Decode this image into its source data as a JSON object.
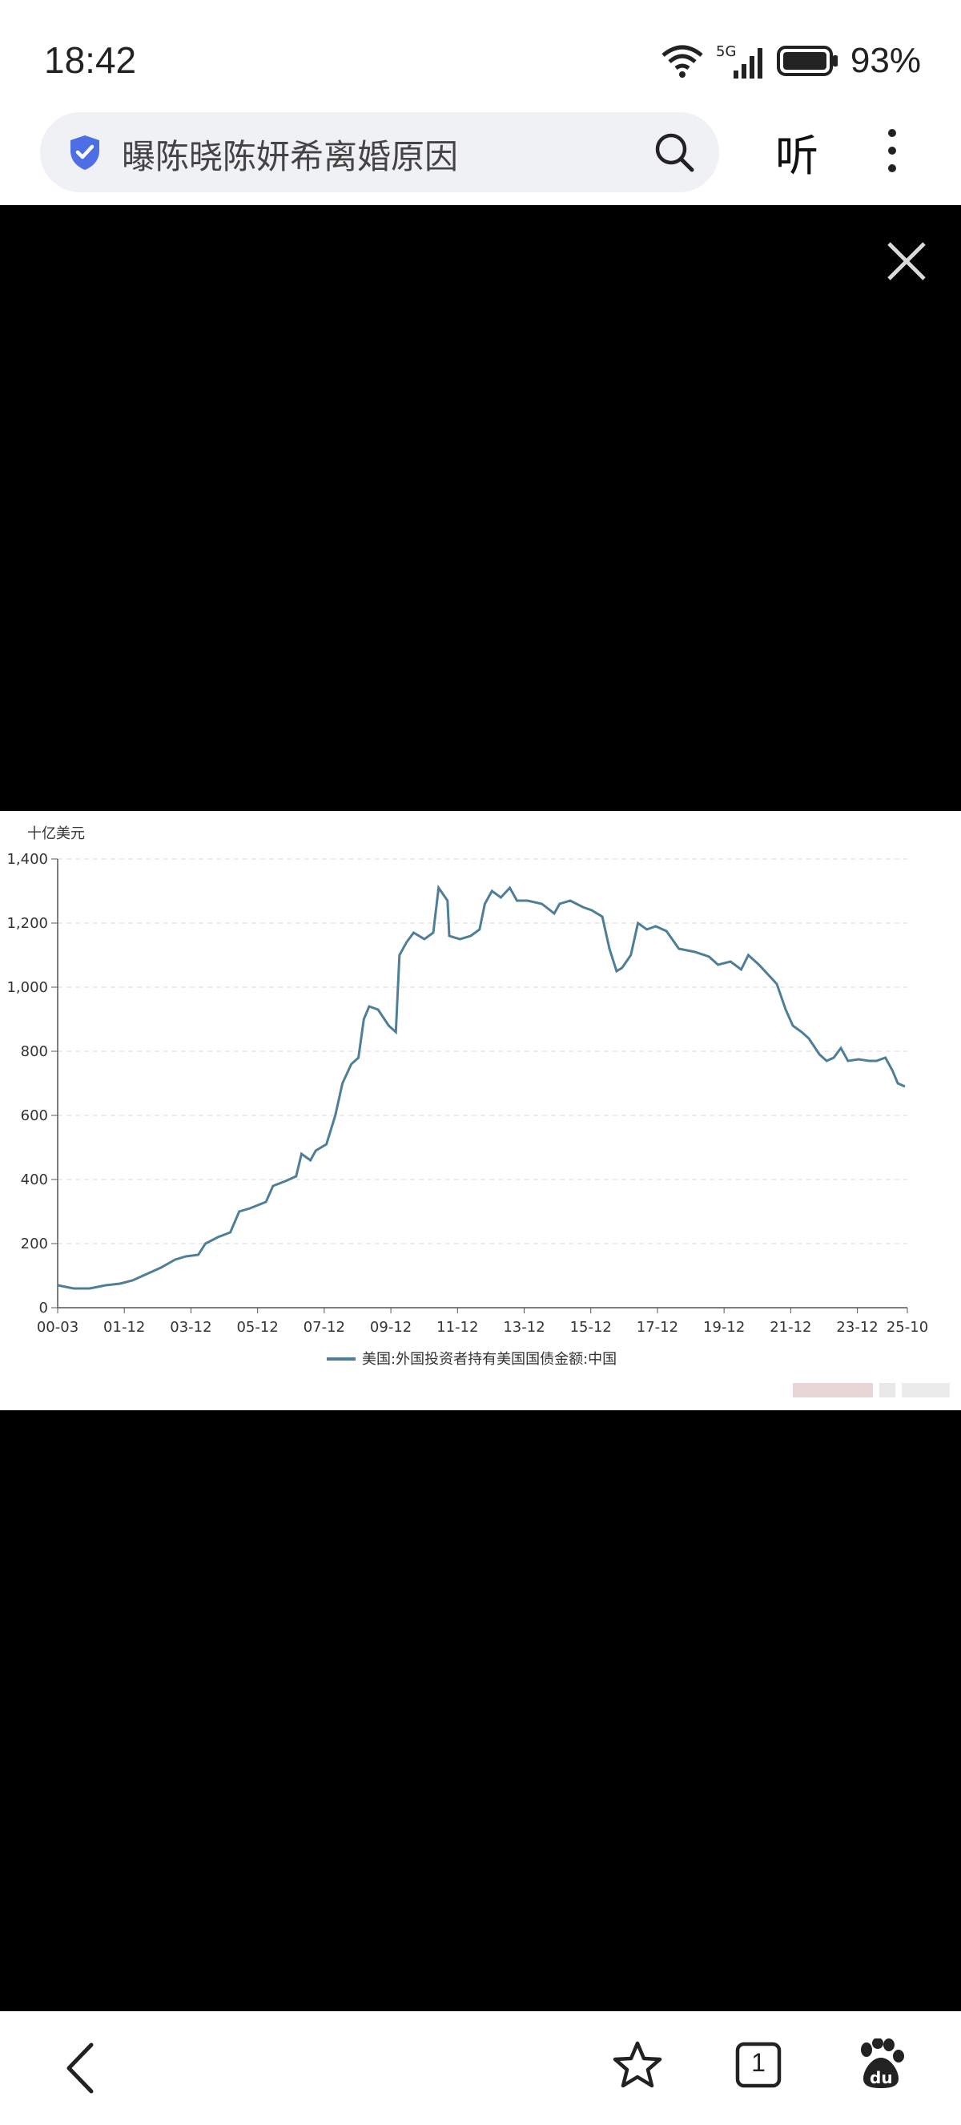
{
  "status_bar": {
    "time": "18:42",
    "network": "5G",
    "battery": "93%"
  },
  "search": {
    "query": "曝陈晓陈妍希离婚原因"
  },
  "header": {
    "listen_label": "听"
  },
  "tab_count": "1",
  "chart_data": {
    "type": "line",
    "ylabel": "十亿美元",
    "ylim": [
      0,
      1400
    ],
    "yticks": [
      "0",
      "200",
      "400",
      "600",
      "800",
      "1,000",
      "1,200",
      "1,400"
    ],
    "xticks": [
      "00-03",
      "01-12",
      "03-12",
      "05-12",
      "07-12",
      "09-12",
      "11-12",
      "13-12",
      "15-12",
      "17-12",
      "19-12",
      "21-12",
      "23-12",
      "25-10"
    ],
    "legend": "美国:外国投资者持有美国国债金额:中国",
    "grid": true,
    "line_color": "#4e7f96",
    "series": [
      {
        "name": "美国:外国投资者持有美国国债金额:中国",
        "points": [
          [
            0.0,
            70
          ],
          [
            0.45,
            60
          ],
          [
            0.9,
            60
          ],
          [
            1.35,
            70
          ],
          [
            1.75,
            75
          ],
          [
            2.1,
            85
          ],
          [
            2.4,
            100
          ],
          [
            2.9,
            125
          ],
          [
            3.3,
            150
          ],
          [
            3.6,
            160
          ],
          [
            3.95,
            165
          ],
          [
            4.15,
            200
          ],
          [
            4.5,
            220
          ],
          [
            4.85,
            235
          ],
          [
            5.1,
            300
          ],
          [
            5.4,
            310
          ],
          [
            5.85,
            330
          ],
          [
            6.05,
            380
          ],
          [
            6.4,
            395
          ],
          [
            6.7,
            410
          ],
          [
            6.85,
            480
          ],
          [
            7.1,
            460
          ],
          [
            7.25,
            490
          ],
          [
            7.55,
            510
          ],
          [
            7.8,
            600
          ],
          [
            8.0,
            700
          ],
          [
            8.25,
            760
          ],
          [
            8.45,
            780
          ],
          [
            8.6,
            900
          ],
          [
            8.75,
            940
          ],
          [
            9.0,
            930
          ],
          [
            9.3,
            880
          ],
          [
            9.5,
            860
          ],
          [
            9.6,
            1100
          ],
          [
            9.8,
            1140
          ],
          [
            10.0,
            1170
          ],
          [
            10.3,
            1150
          ],
          [
            10.55,
            1170
          ],
          [
            10.7,
            1310
          ],
          [
            10.95,
            1270
          ],
          [
            11.0,
            1160
          ],
          [
            11.3,
            1150
          ],
          [
            11.6,
            1160
          ],
          [
            11.85,
            1180
          ],
          [
            12.0,
            1260
          ],
          [
            12.2,
            1300
          ],
          [
            12.45,
            1280
          ],
          [
            12.7,
            1310
          ],
          [
            12.9,
            1270
          ],
          [
            13.2,
            1270
          ],
          [
            13.6,
            1260
          ],
          [
            13.95,
            1230
          ],
          [
            14.1,
            1260
          ],
          [
            14.4,
            1270
          ],
          [
            14.75,
            1250
          ],
          [
            15.0,
            1240
          ],
          [
            15.3,
            1220
          ],
          [
            15.5,
            1120
          ],
          [
            15.7,
            1050
          ],
          [
            15.85,
            1060
          ],
          [
            16.1,
            1100
          ],
          [
            16.3,
            1200
          ],
          [
            16.55,
            1180
          ],
          [
            16.8,
            1190
          ],
          [
            17.1,
            1175
          ],
          [
            17.45,
            1120
          ],
          [
            17.9,
            1110
          ],
          [
            18.3,
            1095
          ],
          [
            18.55,
            1070
          ],
          [
            18.9,
            1080
          ],
          [
            19.2,
            1055
          ],
          [
            19.4,
            1100
          ],
          [
            19.7,
            1070
          ],
          [
            19.95,
            1040
          ],
          [
            20.2,
            1010
          ],
          [
            20.45,
            930
          ],
          [
            20.65,
            880
          ],
          [
            20.9,
            860
          ],
          [
            21.1,
            840
          ],
          [
            21.4,
            790
          ],
          [
            21.6,
            770
          ],
          [
            21.8,
            780
          ],
          [
            22.0,
            810
          ],
          [
            22.2,
            770
          ],
          [
            22.5,
            775
          ],
          [
            22.8,
            770
          ],
          [
            23.0,
            770
          ],
          [
            23.25,
            780
          ],
          [
            23.45,
            740
          ],
          [
            23.6,
            700
          ],
          [
            23.8,
            690
          ]
        ]
      }
    ]
  }
}
